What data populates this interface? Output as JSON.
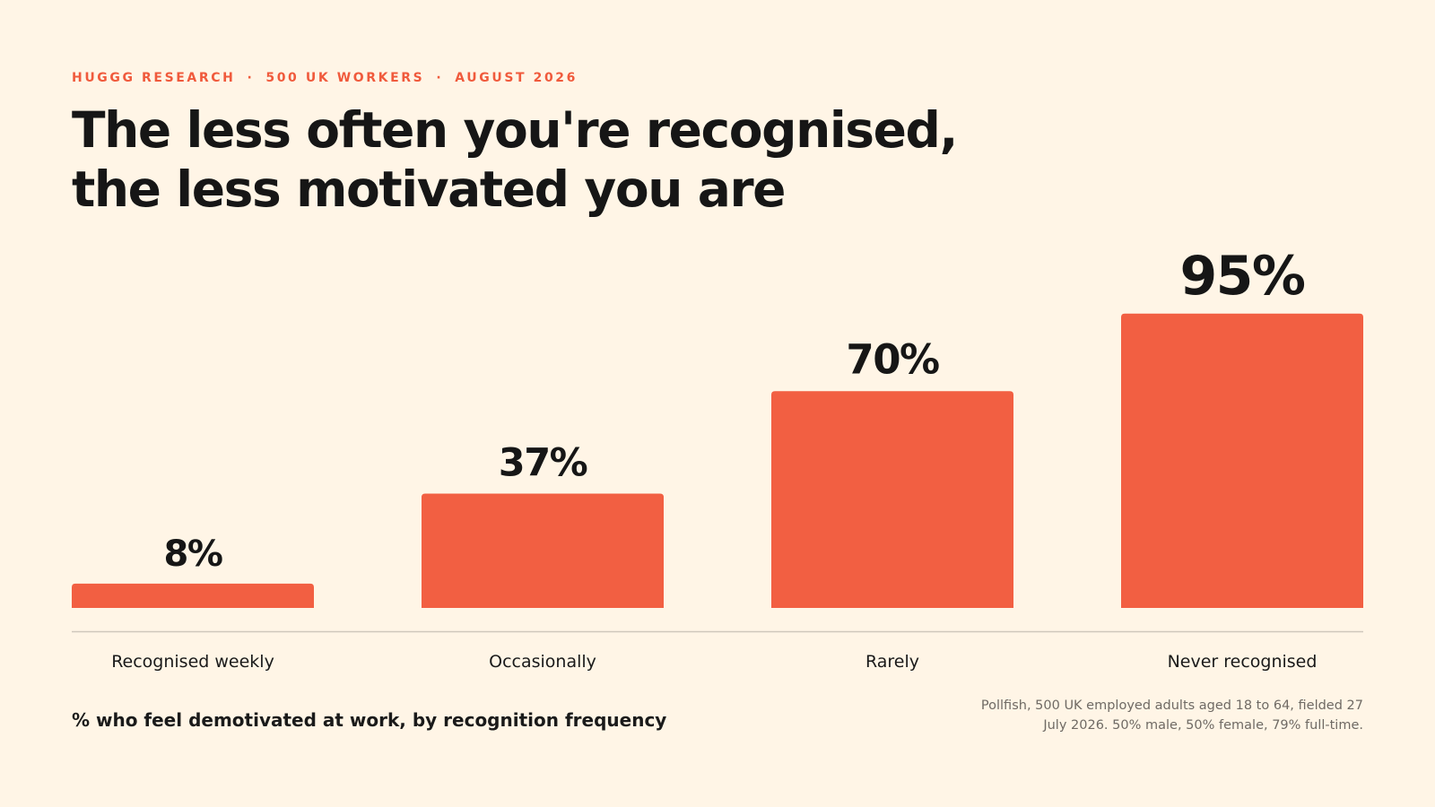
{
  "header": {
    "eyebrow": [
      "HUGGG RESEARCH",
      "500 UK WORKERS",
      "AUGUST 2026"
    ],
    "eyebrow_separator": "·",
    "title": "The less often you're recognised, the less motivated you are"
  },
  "footer": {
    "caption": "% who feel demotivated at work, by recognition frequency",
    "source": "Pollfish, 500 UK employed adults aged 18 to 64, fielded 27 July 2026. 50% male, 50% female, 79% full-time."
  },
  "colors": {
    "background": "#fff5e6",
    "accent": "#f05a3c",
    "bar": "#f25f42",
    "text": "#161616",
    "muted": "#6f6a64",
    "baseline": "#cfc7bb"
  },
  "chart_data": {
    "type": "bar",
    "categories": [
      "Recognised weekly",
      "Occasionally",
      "Rarely",
      "Never recognised"
    ],
    "values": [
      8,
      37,
      70,
      95
    ],
    "value_labels": [
      "8%",
      "37%",
      "70%",
      "95%"
    ],
    "title": "",
    "xlabel": "",
    "ylabel": "",
    "ylim": [
      0,
      100
    ],
    "grid": false,
    "legend": "none"
  }
}
